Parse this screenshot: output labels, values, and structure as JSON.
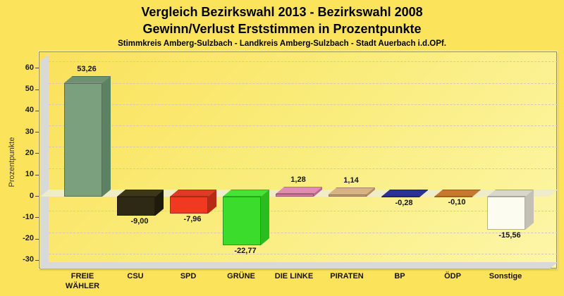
{
  "header": {
    "title_line1": "Vergleich Bezirkswahl 2013 - Bezirkswahl 2008",
    "title_line2": "Gewinn/Verlust Erststimmen in Prozentpunkte",
    "title_line3": "Stimmkreis Amberg-Sulzbach - Landkreis Amberg-Sulzbach - Stadt Auerbach i.d.OPf."
  },
  "chart_data": {
    "type": "bar",
    "style": "3d-column",
    "title": "Vergleich Bezirkswahl 2013 - Bezirkswahl 2008",
    "subtitle": "Gewinn/Verlust Erststimmen in Prozentpunkte",
    "caption": "Stimmkreis Amberg-Sulzbach - Landkreis Amberg-Sulzbach - Stadt Auerbach i.d.OPf.",
    "xlabel": "",
    "ylabel": "Prozentpunkte",
    "ylim": [
      -30,
      60
    ],
    "ytick_step": 10,
    "yticks": [
      60,
      50,
      40,
      30,
      20,
      10,
      0,
      -10,
      -20,
      -30
    ],
    "grid": "horizontal-dashed",
    "legend": "none",
    "categories": [
      "FREIE\nWÄHLER",
      "CSU",
      "SPD",
      "GRÜNE",
      "DIE LINKE",
      "PIRATEN",
      "BP",
      "ÖDP",
      "Sonstige"
    ],
    "values": [
      53.26,
      -9.0,
      -7.96,
      -22.77,
      1.28,
      1.14,
      -0.28,
      -0.1,
      -15.56
    ],
    "value_labels": [
      "53,26",
      "-9,00",
      "-7,96",
      "-22,77",
      "1,28",
      "1,14",
      "-0,28",
      "-0,10",
      "-15,56"
    ],
    "bar_colors": [
      {
        "front": "#7BA07D",
        "top": "#6E9170",
        "side": "#5D8263"
      },
      {
        "front": "#2E2914",
        "top": "#3D3619",
        "side": "#1F1B0C"
      },
      {
        "front": "#EF3A21",
        "top": "#DC3C25",
        "side": "#B72A15"
      },
      {
        "front": "#3BDC2C",
        "top": "#46E236",
        "side": "#2BBC1E"
      },
      {
        "front": "#D878A3",
        "top": "#E18CB1",
        "side": "#BC6790"
      },
      {
        "front": "#CDA271",
        "top": "#D8B285",
        "side": "#B28C5C"
      },
      {
        "front": "#222672",
        "top": "#2B3195",
        "side": "#191D58"
      },
      {
        "front": "#B5671D",
        "top": "#C8782C",
        "side": "#99561A"
      },
      {
        "front": "#FDFCF0",
        "top": "#D9D6CB",
        "side": "#C3C1B5"
      }
    ]
  },
  "colors": {
    "page_background": "#FCE35C",
    "plot_gradient_start": "#FBE15A",
    "plot_gradient_mid": "#F9EC7A",
    "plot_gradient_end": "#FDF6A8",
    "frame_border": "#97904A",
    "wall": "#D9D9D9",
    "wall_edge": "#B9B9B0",
    "zero_band": "#EFECC9",
    "gridline": "#CFCABA",
    "title_text": "#000000",
    "axis_title_text": "#3C3926",
    "tick_text": "#1C1C1C",
    "value_text": "#161616",
    "category_text": "#1A1404"
  }
}
